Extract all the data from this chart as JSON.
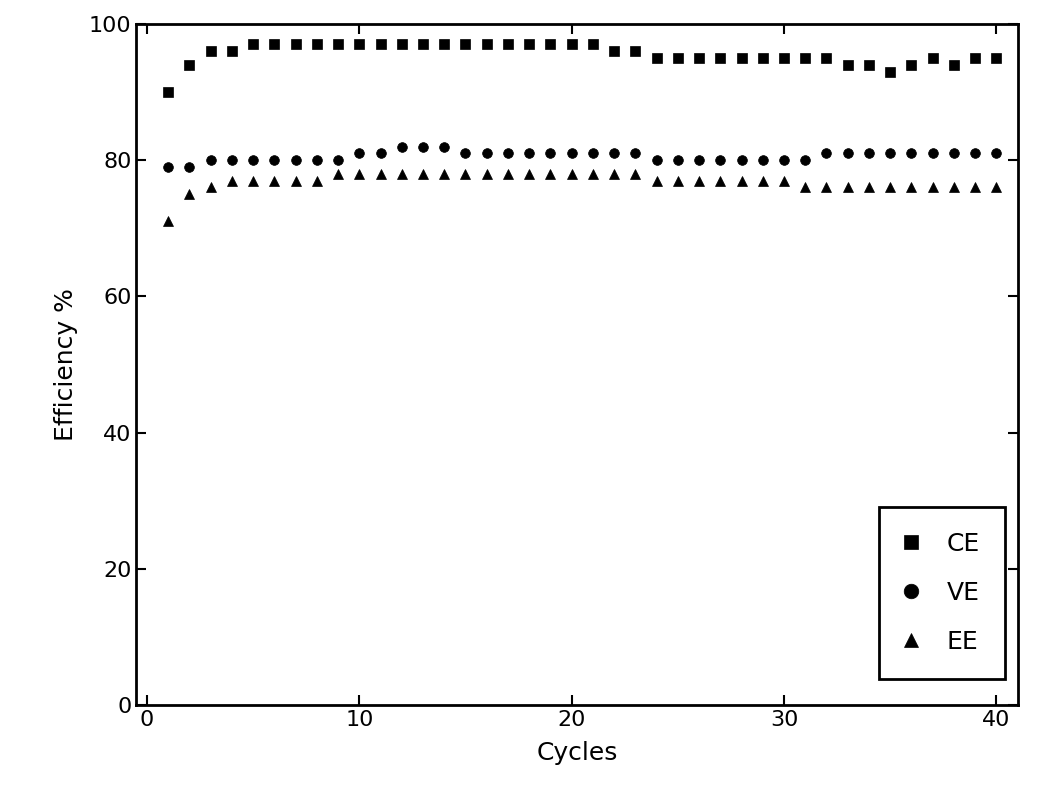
{
  "title": "",
  "xlabel": "Cycles",
  "ylabel": "Efficiency %",
  "xlim": [
    -0.5,
    41
  ],
  "ylim": [
    0,
    100
  ],
  "xticks": [
    0,
    10,
    20,
    30,
    40
  ],
  "yticks": [
    0,
    20,
    40,
    60,
    80,
    100
  ],
  "background_color": "#ffffff",
  "CE": {
    "x": [
      1,
      2,
      3,
      4,
      5,
      6,
      7,
      8,
      9,
      10,
      11,
      12,
      13,
      14,
      15,
      16,
      17,
      18,
      19,
      20,
      21,
      22,
      23,
      24,
      25,
      26,
      27,
      28,
      29,
      30,
      31,
      32,
      33,
      34,
      35,
      36,
      37,
      38,
      39,
      40
    ],
    "y": [
      90,
      94,
      96,
      96,
      97,
      97,
      97,
      97,
      97,
      97,
      97,
      97,
      97,
      97,
      97,
      97,
      97,
      97,
      97,
      97,
      97,
      96,
      96,
      95,
      95,
      95,
      95,
      95,
      95,
      95,
      95,
      95,
      94,
      94,
      93,
      94,
      95,
      94,
      95,
      95
    ],
    "color": "#000000",
    "marker": "s",
    "markersize": 7,
    "label": "CE"
  },
  "VE": {
    "x": [
      1,
      2,
      3,
      4,
      5,
      6,
      7,
      8,
      9,
      10,
      11,
      12,
      13,
      14,
      15,
      16,
      17,
      18,
      19,
      20,
      21,
      22,
      23,
      24,
      25,
      26,
      27,
      28,
      29,
      30,
      31,
      32,
      33,
      34,
      35,
      36,
      37,
      38,
      39,
      40
    ],
    "y": [
      79,
      79,
      80,
      80,
      80,
      80,
      80,
      80,
      80,
      81,
      81,
      82,
      82,
      82,
      81,
      81,
      81,
      81,
      81,
      81,
      81,
      81,
      81,
      80,
      80,
      80,
      80,
      80,
      80,
      80,
      80,
      81,
      81,
      81,
      81,
      81,
      81,
      81,
      81,
      81
    ],
    "color": "#000000",
    "marker": "o",
    "markersize": 7,
    "label": "VE"
  },
  "EE": {
    "x": [
      1,
      2,
      3,
      4,
      5,
      6,
      7,
      8,
      9,
      10,
      11,
      12,
      13,
      14,
      15,
      16,
      17,
      18,
      19,
      20,
      21,
      22,
      23,
      24,
      25,
      26,
      27,
      28,
      29,
      30,
      31,
      32,
      33,
      34,
      35,
      36,
      37,
      38,
      39,
      40
    ],
    "y": [
      71,
      75,
      76,
      77,
      77,
      77,
      77,
      77,
      78,
      78,
      78,
      78,
      78,
      78,
      78,
      78,
      78,
      78,
      78,
      78,
      78,
      78,
      78,
      77,
      77,
      77,
      77,
      77,
      77,
      77,
      76,
      76,
      76,
      76,
      76,
      76,
      76,
      76,
      76,
      76
    ],
    "color": "#000000",
    "marker": "^",
    "markersize": 7,
    "label": "EE"
  },
  "font_size": 18,
  "tick_font_size": 16,
  "legend_font_size": 18
}
